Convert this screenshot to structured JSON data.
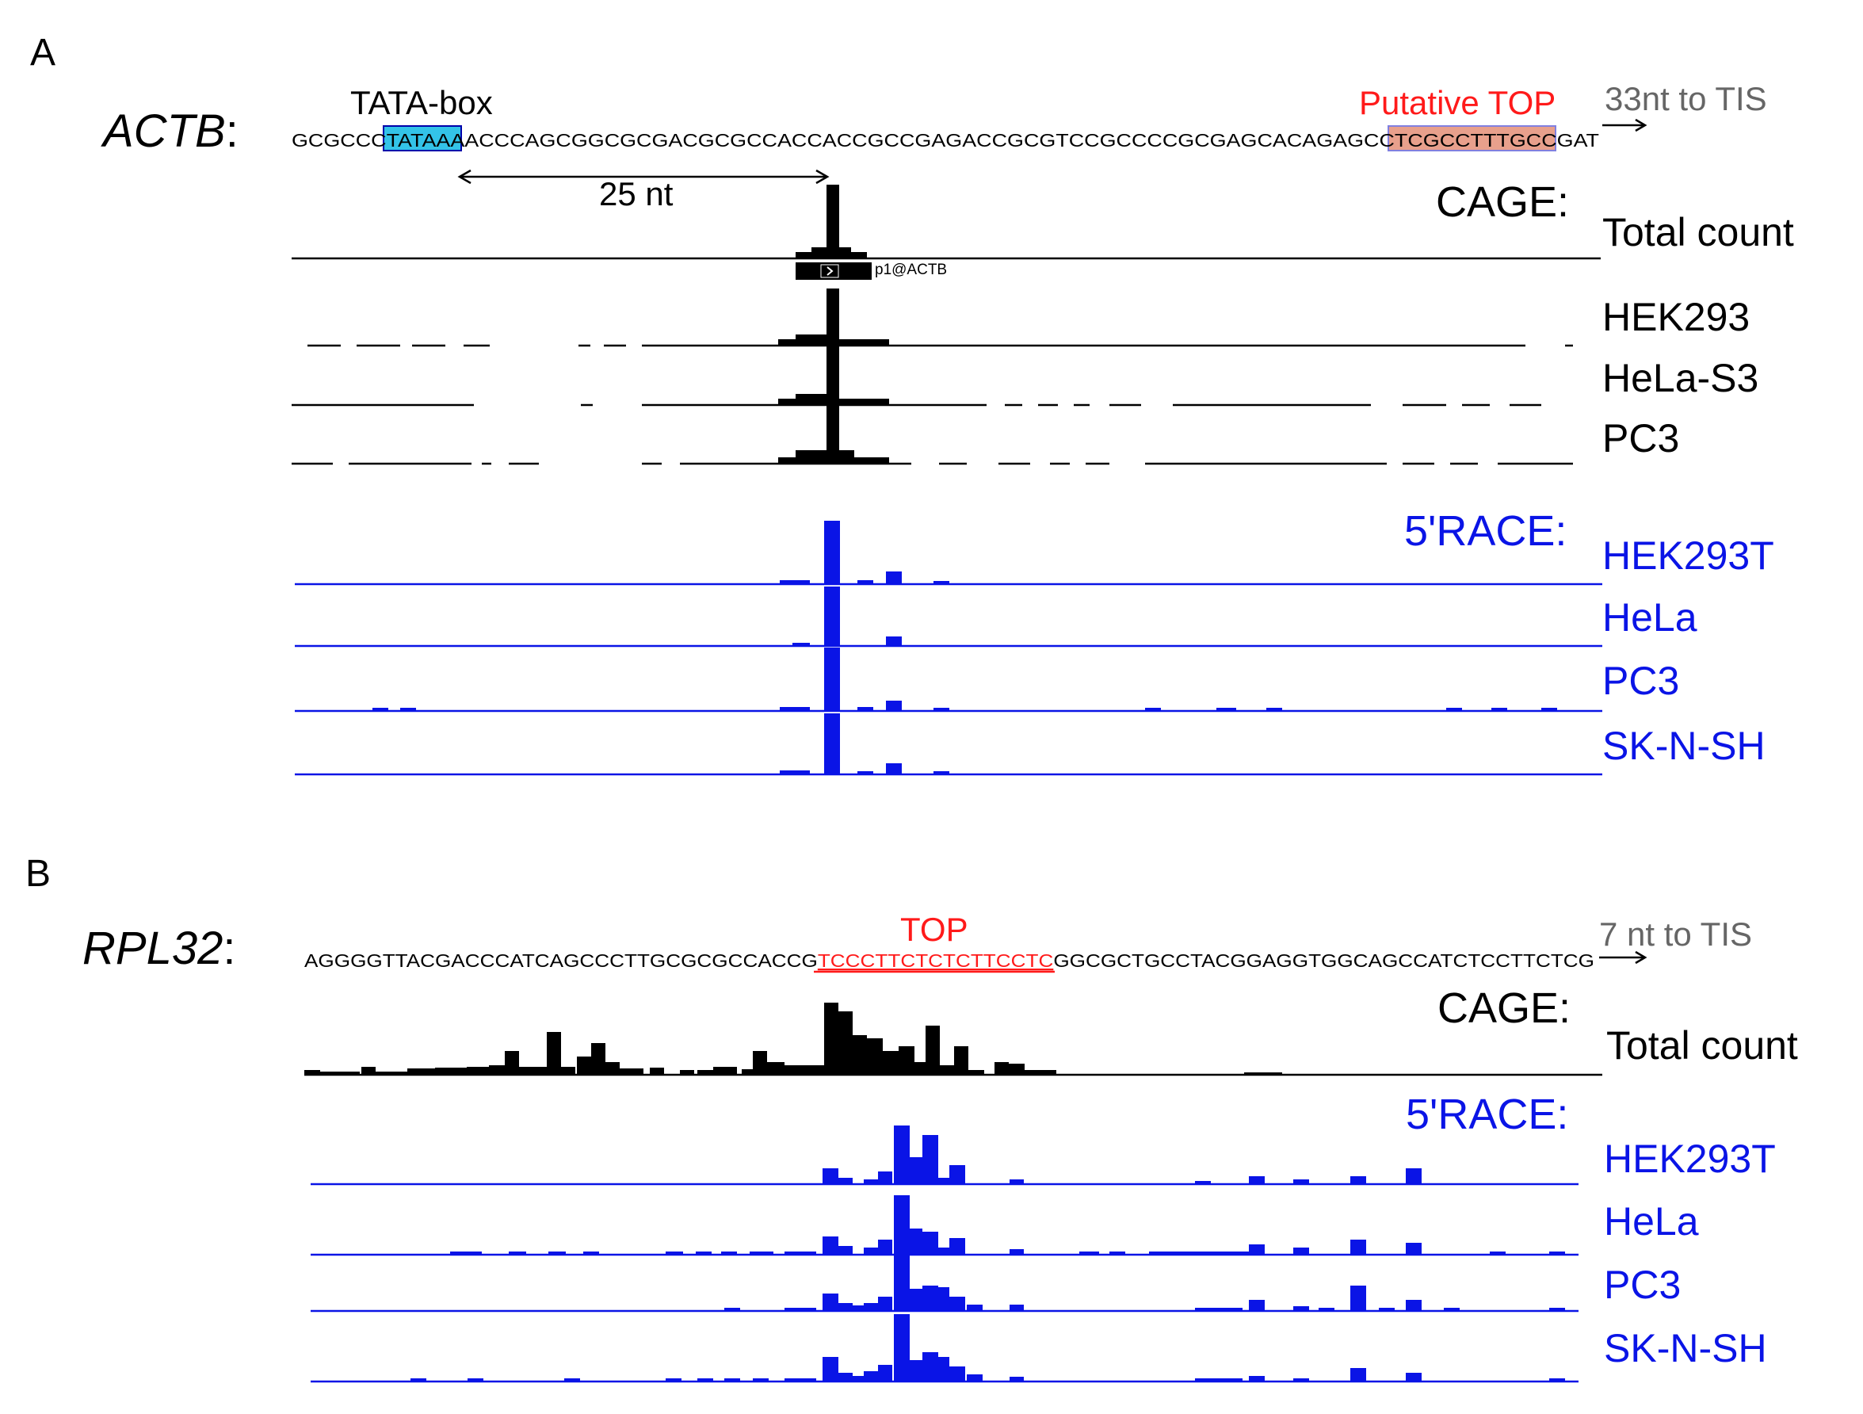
{
  "colors": {
    "black": "#000000",
    "blue": "#0a14e6",
    "red": "#ff1a1a",
    "gray": "#666666",
    "tata_fill": "#33c3e8",
    "top_fill": "#e8a08c",
    "top_border": "#8080e0"
  },
  "panel_a": {
    "letter": "A",
    "gene": "ACTB",
    "gene_colon": ":",
    "sequence_pre": "GCGCCC",
    "sequence_tata": "TATAA",
    "sequence_mid": "AACCCAGCGGCGCGACGCGCCACCACCGCCGAGACCGCGTCCGCCCCGCGAGCACAGAGCC",
    "sequence_top": "TCGCCTTTGCC",
    "sequence_post": "GAT",
    "tata_label": "TATA-box",
    "top_label": "Putative TOP",
    "tis_label": "33nt to TIS",
    "distance_label": "25 nt",
    "cage_header": "CAGE:",
    "race_header": "5'RACE:",
    "cluster_label": "p1@ACTB",
    "cage_tracks": [
      "Total count",
      "HEK293",
      "HeLa-S3",
      "PC3"
    ],
    "race_tracks": [
      "HEK293T",
      "HeLa",
      "PC3",
      "SK-N-SH"
    ]
  },
  "panel_b": {
    "letter": "B",
    "gene": "RPL32",
    "gene_colon": ":",
    "sequence_pre": "AGGGGTTACGACCCATCAGCCCTTGCGCGCCACCG",
    "sequence_top": "TCCCTTCTCTCTTCCTC",
    "sequence_post": "GGCGCTGCCTACGGAGGTGGCAGCCATCTCCTTCTCG",
    "top_label": "TOP",
    "tis_label": "7 nt to TIS",
    "cage_header": "CAGE:",
    "race_header": "5'RACE:",
    "cage_tracks": [
      "Total count"
    ],
    "race_tracks": [
      "HEK293T",
      "HeLa",
      "PC3",
      "SK-N-SH"
    ]
  }
}
